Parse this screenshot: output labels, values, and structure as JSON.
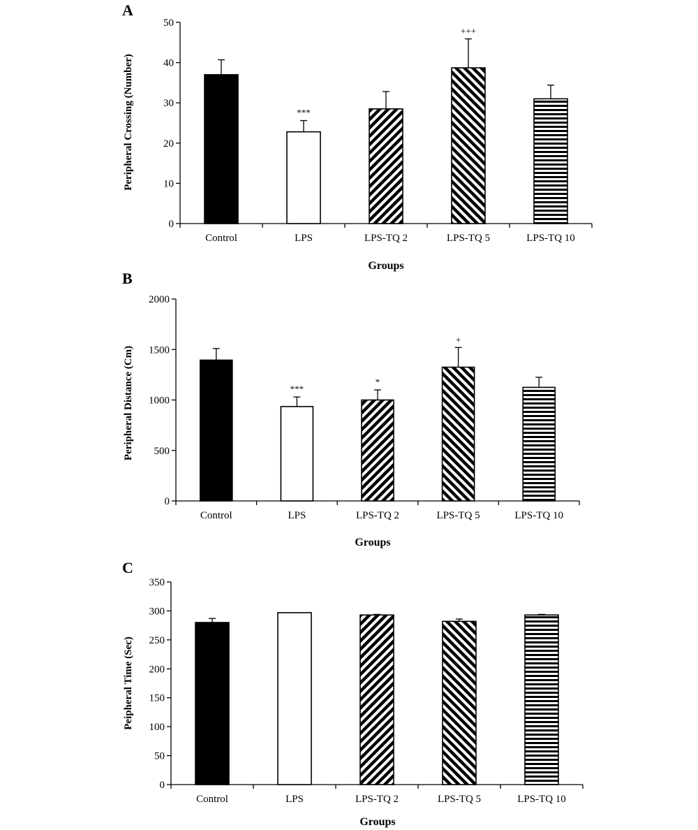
{
  "chart_data": [
    {
      "type": "bar",
      "panel": "A",
      "categories": [
        "Control",
        "LPS",
        "LPS-TQ 2",
        "LPS-TQ 5",
        "LPS-TQ 10"
      ],
      "values": [
        37,
        22.8,
        28.5,
        38.7,
        31
      ],
      "errors": [
        3.7,
        2.8,
        4.3,
        7.2,
        3.4
      ],
      "annotations": [
        "",
        "***",
        "",
        "+++",
        ""
      ],
      "patterns": [
        "solid-black",
        "white",
        "diagonal-up",
        "diagonal-down",
        "horizontal"
      ],
      "xlabel": "Groups",
      "ylabel": "Peripheral Crossing (Number)",
      "ylim": [
        0,
        50
      ],
      "yticks": [
        0,
        10,
        20,
        30,
        40,
        50
      ],
      "grid": false
    },
    {
      "type": "bar",
      "panel": "B",
      "categories": [
        "Control",
        "LPS",
        "LPS-TQ 2",
        "LPS-TQ 5",
        "LPS-TQ 10"
      ],
      "values": [
        1395,
        935,
        1000,
        1325,
        1125
      ],
      "errors": [
        115,
        95,
        100,
        195,
        100
      ],
      "annotations": [
        "",
        "***",
        "*",
        "+",
        ""
      ],
      "patterns": [
        "solid-black",
        "white",
        "diagonal-up",
        "diagonal-down",
        "horizontal"
      ],
      "xlabel": "Groups",
      "ylabel": "Peripheral Distance (Cm)",
      "ylim": [
        0,
        2000
      ],
      "yticks": [
        0,
        500,
        1000,
        1500,
        2000
      ],
      "grid": false
    },
    {
      "type": "bar",
      "panel": "C",
      "categories": [
        "Control",
        "LPS",
        "LPS-TQ 2",
        "LPS-TQ 5",
        "LPS-TQ 10"
      ],
      "values": [
        280,
        297,
        293,
        282,
        293
      ],
      "errors": [
        7,
        0,
        1,
        4,
        1
      ],
      "annotations": [
        "",
        "",
        "",
        "",
        ""
      ],
      "patterns": [
        "solid-black",
        "white",
        "diagonal-up",
        "diagonal-down",
        "horizontal"
      ],
      "xlabel": "Groups",
      "ylabel": "Peipheral Time (Sec)",
      "ylim": [
        0,
        350
      ],
      "yticks": [
        0,
        50,
        100,
        150,
        200,
        250,
        300,
        350
      ],
      "grid": false
    }
  ]
}
